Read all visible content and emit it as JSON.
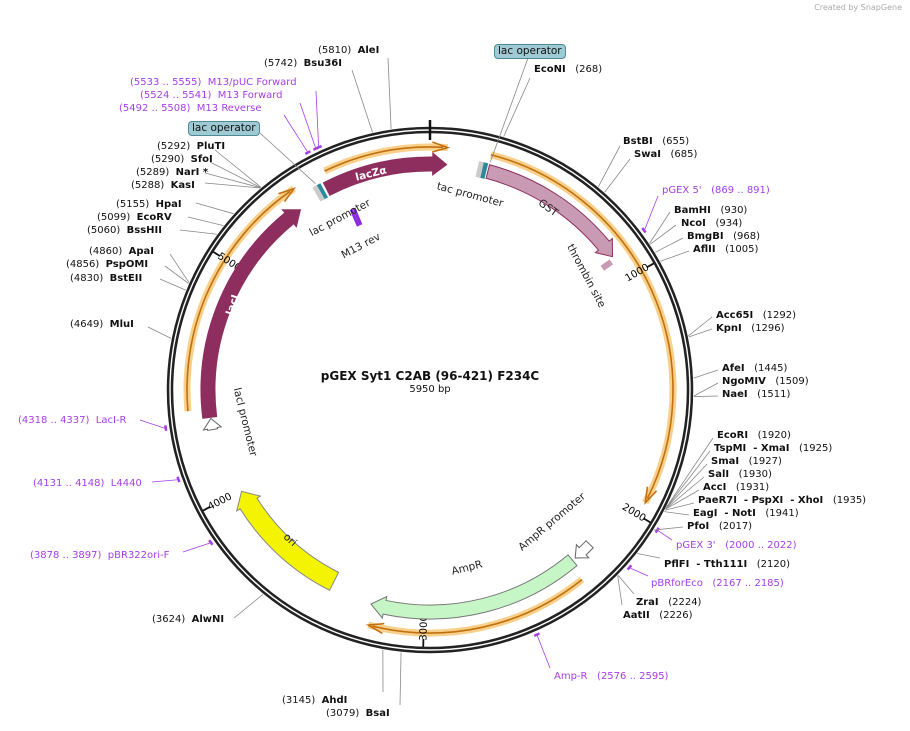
{
  "credit": "Created by  SnapGene",
  "title": "pGEX Syt1 C2AB (96-421) F234C",
  "length": "5950 bp",
  "total_bp": 5950,
  "colors": {
    "backbone": "#222222",
    "lacZ": "#8e2e5e",
    "gst": "#c99ab3",
    "ori": "#f4f400",
    "ampr": "#c6f5c6",
    "orf": "#f8d08a",
    "orf_line": "#c07010",
    "primer": "#a53ee8",
    "operator": "#9fc9d3"
  },
  "ticks": [
    {
      "pos": 1000,
      "label": "1000"
    },
    {
      "pos": 2000,
      "label": "2000"
    },
    {
      "pos": 3000,
      "label": "3000"
    },
    {
      "pos": 4000,
      "label": "4000"
    },
    {
      "pos": 5000,
      "label": "5000"
    }
  ],
  "enzymes": [
    {
      "name": "AleI",
      "pos": "(5810)",
      "bp": 5810
    },
    {
      "name": "Bsu36I",
      "pos": "(5742)",
      "bp": 5742
    },
    {
      "name": "EcoNI",
      "pos": "(268)",
      "bp": 268
    },
    {
      "name": "BstBI",
      "pos": "(655)",
      "bp": 655
    },
    {
      "name": "SwaI",
      "pos": "(685)",
      "bp": 685
    },
    {
      "name": "BamHI",
      "pos": "(930)",
      "bp": 930
    },
    {
      "name": "NcoI",
      "pos": "(934)",
      "bp": 934
    },
    {
      "name": "BmgBI",
      "pos": "(968)",
      "bp": 968
    },
    {
      "name": "AflII",
      "pos": "(1005)",
      "bp": 1005
    },
    {
      "name": "Acc65I",
      "pos": "(1292)",
      "bp": 1292
    },
    {
      "name": "KpnI",
      "pos": "(1296)",
      "bp": 1296
    },
    {
      "name": "AfeI",
      "pos": "(1445)",
      "bp": 1445
    },
    {
      "name": "NgoMIV",
      "pos": "(1509)",
      "bp": 1509
    },
    {
      "name": "NaeI",
      "pos": "(1511)",
      "bp": 1511
    },
    {
      "name": "EcoRI",
      "pos": "(1920)",
      "bp": 1920
    },
    {
      "name": "TspMI  - XmaI",
      "pos": "(1925)",
      "bp": 1925
    },
    {
      "name": "SmaI",
      "pos": "(1927)",
      "bp": 1927
    },
    {
      "name": "SalI",
      "pos": "(1930)",
      "bp": 1930
    },
    {
      "name": "AccI",
      "pos": "(1931)",
      "bp": 1931
    },
    {
      "name": "PaeR7I  - PspXI  - XhoI",
      "pos": "(1935)",
      "bp": 1935
    },
    {
      "name": "EagI  - NotI",
      "pos": "(1941)",
      "bp": 1941
    },
    {
      "name": "PfoI",
      "pos": "(2017)",
      "bp": 2017
    },
    {
      "name": "PflFI  - Tth111I",
      "pos": "(2120)",
      "bp": 2120
    },
    {
      "name": "ZraI",
      "pos": "(2224)",
      "bp": 2224
    },
    {
      "name": "AatII",
      "pos": "(2226)",
      "bp": 2226
    },
    {
      "name": "AhdI",
      "pos": "(3145)",
      "bp": 3145
    },
    {
      "name": "BsaI",
      "pos": "(3079)",
      "bp": 3079
    },
    {
      "name": "AlwNI",
      "pos": "(3624)",
      "bp": 3624
    },
    {
      "name": "MluI",
      "pos": "(4649)",
      "bp": 4649
    },
    {
      "name": "BstEII",
      "pos": "(4830)",
      "bp": 4830
    },
    {
      "name": "PspOMI",
      "pos": "(4856)",
      "bp": 4856
    },
    {
      "name": "ApaI",
      "pos": "(4860)",
      "bp": 4860
    },
    {
      "name": "BssHII",
      "pos": "(5060)",
      "bp": 5060
    },
    {
      "name": "EcoRV",
      "pos": "(5099)",
      "bp": 5099
    },
    {
      "name": "HpaI",
      "pos": "(5155)",
      "bp": 5155
    },
    {
      "name": "KasI",
      "pos": "(5288)",
      "bp": 5288
    },
    {
      "name": "NarI *",
      "pos": "(5289)",
      "bp": 5289
    },
    {
      "name": "SfoI",
      "pos": "(5290)",
      "bp": 5290
    },
    {
      "name": "PluTI",
      "pos": "(5292)",
      "bp": 5292
    }
  ],
  "primers": [
    {
      "name": "M13/pUC Forward",
      "range": "(5533 .. 5555)",
      "bp": 5544
    },
    {
      "name": "M13 Forward",
      "range": "(5524 .. 5541)",
      "bp": 5532
    },
    {
      "name": "M13 Reverse",
      "range": "(5492 .. 5508)",
      "bp": 5500
    },
    {
      "name": "pGEX 5'",
      "range": "(869 .. 891)",
      "bp": 880
    },
    {
      "name": "pGEX 3'",
      "range": "(2000 .. 2022)",
      "bp": 2011
    },
    {
      "name": "pBRforEco",
      "range": "(2167 .. 2185)",
      "bp": 2176
    },
    {
      "name": "Amp-R",
      "range": "(2576 .. 2595)",
      "bp": 2585
    },
    {
      "name": "pBR322ori-F",
      "range": "(3878 .. 3897)",
      "bp": 3887
    },
    {
      "name": "L4440",
      "range": "(4131 .. 4148)",
      "bp": 4139
    },
    {
      "name": "LacI-R",
      "range": "(4318 .. 4337)",
      "bp": 4327
    }
  ],
  "operators": [
    {
      "label": "lac operator",
      "bp": 5470
    },
    {
      "label": "lac operator",
      "bp": 245
    }
  ],
  "features": [
    {
      "name": "lacZα",
      "start": 5500,
      "end": 5950,
      "end2": 70,
      "type": "gene"
    },
    {
      "name": "GST",
      "start": 245,
      "end": 890,
      "type": "gene"
    },
    {
      "name": "lacI",
      "start": 4345,
      "end": 5360,
      "type": "gene"
    },
    {
      "name": "ori",
      "start": 3415,
      "end": 3995,
      "type": "ori"
    },
    {
      "name": "AmpR",
      "start": 2315,
      "end": 3230,
      "type": "resistance"
    },
    {
      "name": "lac promoter",
      "type": "promoter"
    },
    {
      "name": "tac promoter",
      "type": "promoter"
    },
    {
      "name": "M13 rev",
      "type": "primer_bind"
    },
    {
      "name": "thrombin site",
      "type": "site"
    },
    {
      "name": "lacI promoter",
      "start": 4290,
      "end": 4340,
      "type": "promoter"
    },
    {
      "name": "AmpR promoter",
      "start": 2210,
      "end": 2300,
      "type": "promoter"
    }
  ],
  "orfs": [
    {
      "start": 5525,
      "end": 6019
    },
    {
      "start": 240,
      "end": 1944
    },
    {
      "start": 4380,
      "end": 5387
    },
    {
      "start": 2335,
      "end": 3218
    }
  ]
}
